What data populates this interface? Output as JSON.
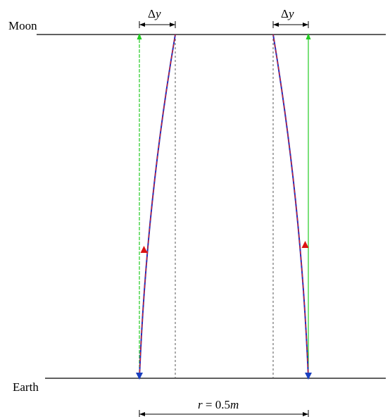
{
  "labels": {
    "moon": "Moon",
    "earth": "Earth",
    "delta": "Δ",
    "y": "y",
    "r_lhs": "r",
    "r_eq": " = 0.5",
    "r_unit": "m"
  },
  "colors": {
    "horizon": "#000000",
    "reference": "#555555",
    "path_solid": "#1f2fbf",
    "path_dashed": "#e02020",
    "straight_path": "#22cc22",
    "arrow_up": "#dd1111",
    "arrow_down": "#1a3fbf",
    "dimension": "#000000"
  },
  "icons": {
    "up_arrowhead": "red-triangle-up",
    "down_arrowhead": "blue-triangle-down",
    "dimension_arrows": "double-headed-arrow"
  }
}
